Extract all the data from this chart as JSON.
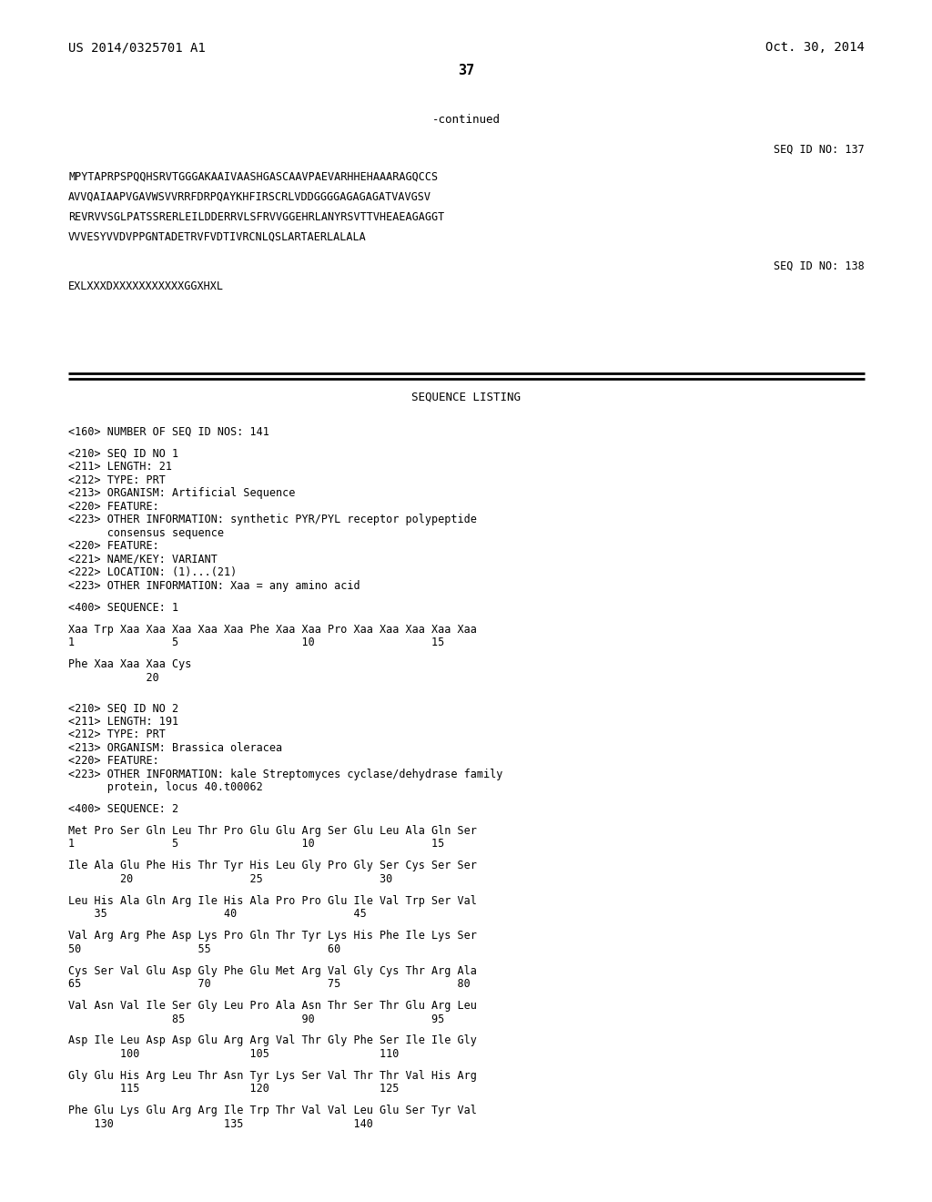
{
  "background_color": "#ffffff",
  "header_left": "US 2014/0325701 A1",
  "header_right": "Oct. 30, 2014",
  "page_number": "37",
  "continued_text": "-continued",
  "seq_id_137_label": "SEQ ID NO: 137",
  "seq_137_lines": [
    "MPYTAPRPSPQQHSRVTGGGAKAAIVAASHGASCAAVPAEVARHHEHAAARAGQCCS",
    "AVVQAIAAPVGAVWSVVRRFDRPQAYKHFIRSCRLVDDGGGGAGAGAGATVAVGSV",
    "REVRVVSGLPATSSRERLEILDDERRVLSFRVVGGEHRLANYRSVTTVHEAEAGAGGT",
    "VVVESYVVDVPPGNTADETRVFVDTIVRCNLQSLARTAERLALALA"
  ],
  "seq_id_138_label": "SEQ ID NO: 138",
  "seq_138_lines": [
    "EXLXXXDXXXXXXXXXXXGGXHXL"
  ],
  "section_title": "SEQUENCE LISTING",
  "body_lines": [
    "<160> NUMBER OF SEQ ID NOS: 141",
    "",
    "<210> SEQ ID NO 1",
    "<211> LENGTH: 21",
    "<212> TYPE: PRT",
    "<213> ORGANISM: Artificial Sequence",
    "<220> FEATURE:",
    "<223> OTHER INFORMATION: synthetic PYR/PYL receptor polypeptide",
    "      consensus sequence",
    "<220> FEATURE:",
    "<221> NAME/KEY: VARIANT",
    "<222> LOCATION: (1)...(21)",
    "<223> OTHER INFORMATION: Xaa = any amino acid",
    "",
    "<400> SEQUENCE: 1",
    "",
    "Xaa Trp Xaa Xaa Xaa Xaa Xaa Phe Xaa Xaa Pro Xaa Xaa Xaa Xaa Xaa",
    "1               5                   10                  15",
    "",
    "Phe Xaa Xaa Xaa Cys",
    "            20",
    "",
    "",
    "<210> SEQ ID NO 2",
    "<211> LENGTH: 191",
    "<212> TYPE: PRT",
    "<213> ORGANISM: Brassica oleracea",
    "<220> FEATURE:",
    "<223> OTHER INFORMATION: kale Streptomyces cyclase/dehydrase family",
    "      protein, locus 40.t00062",
    "",
    "<400> SEQUENCE: 2",
    "",
    "Met Pro Ser Gln Leu Thr Pro Glu Glu Arg Ser Glu Leu Ala Gln Ser",
    "1               5                   10                  15",
    "",
    "Ile Ala Glu Phe His Thr Tyr His Leu Gly Pro Gly Ser Cys Ser Ser",
    "        20                  25                  30",
    "",
    "Leu His Ala Gln Arg Ile His Ala Pro Pro Glu Ile Val Trp Ser Val",
    "    35                  40                  45",
    "",
    "Val Arg Arg Phe Asp Lys Pro Gln Thr Tyr Lys His Phe Ile Lys Ser",
    "50                  55                  60",
    "",
    "Cys Ser Val Glu Asp Gly Phe Glu Met Arg Val Gly Cys Thr Arg Ala",
    "65                  70                  75                  80",
    "",
    "Val Asn Val Ile Ser Gly Leu Pro Ala Asn Thr Ser Thr Glu Arg Leu",
    "                85                  90                  95",
    "",
    "Asp Ile Leu Asp Asp Glu Arg Arg Val Thr Gly Phe Ser Ile Ile Gly",
    "        100                 105                 110",
    "",
    "Gly Glu His Arg Leu Thr Asn Tyr Lys Ser Val Thr Thr Val His Arg",
    "        115                 120                 125",
    "",
    "Phe Glu Lys Glu Arg Arg Ile Trp Thr Val Val Leu Glu Ser Tyr Val",
    "    130                 135                 140"
  ]
}
